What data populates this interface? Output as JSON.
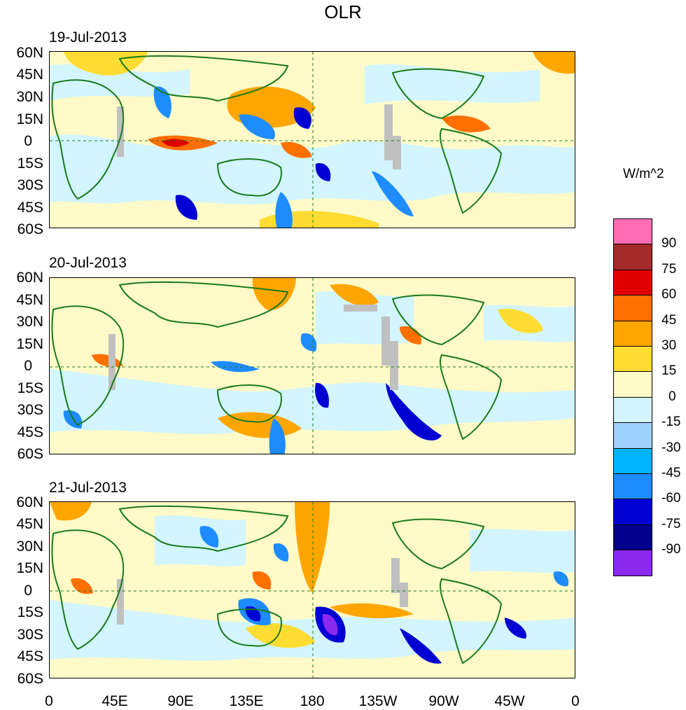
{
  "title": "OLR",
  "panels": [
    {
      "date": "19-Jul-2013"
    },
    {
      "date": "20-Jul-2013"
    },
    {
      "date": "21-Jul-2013"
    }
  ],
  "lat_ticks": [
    "60N",
    "45N",
    "30N",
    "15N",
    "0",
    "15S",
    "30S",
    "45S",
    "60S"
  ],
  "lon_ticks": [
    "0",
    "45E",
    "90E",
    "135E",
    "180",
    "135W",
    "90W",
    "45W",
    "0"
  ],
  "colorbar": {
    "units": "W/m^2",
    "levels": [
      "90",
      "75",
      "60",
      "45",
      "30",
      "15",
      "0",
      "-15",
      "-30",
      "-45",
      "-60",
      "-75",
      "-90"
    ],
    "colors": [
      "#ff6eb4",
      "#a52a2a",
      "#e00000",
      "#ff7000",
      "#ffa500",
      "#ffdc32",
      "#fffac8",
      "#d2f5ff",
      "#a0d2ff",
      "#00b4ff",
      "#1e8cff",
      "#0000d2",
      "#00008c",
      "#8c28f0"
    ]
  },
  "colors": {
    "coast": "#1a7a1a",
    "missing": "#c0c0c0"
  }
}
